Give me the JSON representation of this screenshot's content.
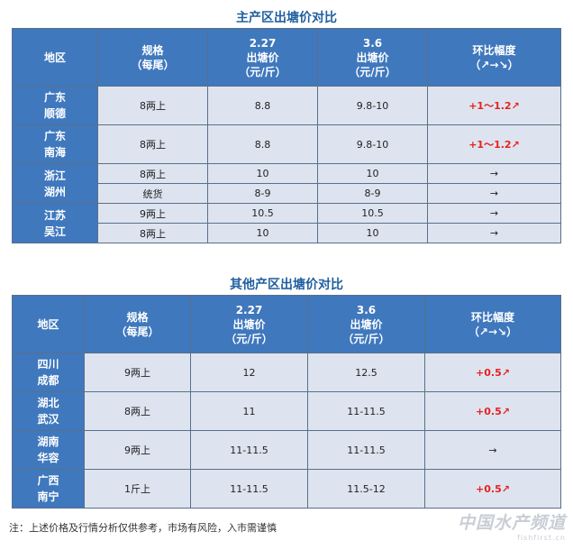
{
  "table1": {
    "title": "主产区出塘价对比",
    "headers": {
      "region": "地区",
      "spec_line1": "规格",
      "spec_line2": "（每尾）",
      "date1": "2.27",
      "date2": "3.6",
      "price_line1": "出塘价",
      "price_line2": "（元/斤）",
      "change_line1": "环比幅度",
      "change_line2": "（↗→↘）"
    },
    "rows": [
      {
        "region_line1": "广东",
        "region_line2": "顺德",
        "spec": "8两上",
        "p1": "8.8",
        "p2": "9.8-10",
        "change": "+1～1.2↗"
      },
      {
        "region_line1": "广东",
        "region_line2": "南海",
        "spec": "8两上",
        "p1": "8.8",
        "p2": "9.8-10",
        "change": "+1～1.2↗"
      },
      {
        "region_line1": "浙江",
        "region_line2": "湖州",
        "spec": "8两上",
        "p1": "10",
        "p2": "10",
        "change": "→"
      },
      {
        "spec": "统货",
        "p1": "8-9",
        "p2": "8-9",
        "change": "→"
      },
      {
        "region_line1": "江苏",
        "region_line2": "吴江",
        "spec": "9两上",
        "p1": "10.5",
        "p2": "10.5",
        "change": "→"
      },
      {
        "spec": "8两上",
        "p1": "10",
        "p2": "10",
        "change": "→"
      }
    ]
  },
  "table2": {
    "title": "其他产区出塘价对比",
    "headers": {
      "region": "地区",
      "spec_line1": "规格",
      "spec_line2": "（每尾）",
      "date1": "2.27",
      "date2": "3.6",
      "price_line1": "出塘价",
      "price_line2": "（元/斤）",
      "change_line1": "环比幅度",
      "change_line2": "（↗→↘）"
    },
    "rows": [
      {
        "region_line1": "四川",
        "region_line2": "成都",
        "spec": "9两上",
        "p1": "12",
        "p2": "12.5",
        "change": "+0.5↗"
      },
      {
        "region_line1": "湖北",
        "region_line2": "武汉",
        "spec": "8两上",
        "p1": "11",
        "p2": "11-11.5",
        "change": "+0.5↗"
      },
      {
        "region_line1": "湖南",
        "region_line2": "华容",
        "spec": "9两上",
        "p1": "11-11.5",
        "p2": "11-11.5",
        "change": "→"
      },
      {
        "region_line1": "广西",
        "region_line2": "南宁",
        "spec": "1斤上",
        "p1": "11-11.5",
        "p2": "11.5-12",
        "change": "+0.5↗"
      }
    ]
  },
  "note": "注：上述价格及行情分析仅供参考，市场有风险，入市需谨慎",
  "watermark": {
    "main": "中国水产频道",
    "sub": "fishfirst.cn"
  },
  "colors": {
    "header_bg": "#3f78bd",
    "cell_bg": "#dde4ef",
    "up": "#e8211f",
    "title": "#1f5f9f"
  }
}
